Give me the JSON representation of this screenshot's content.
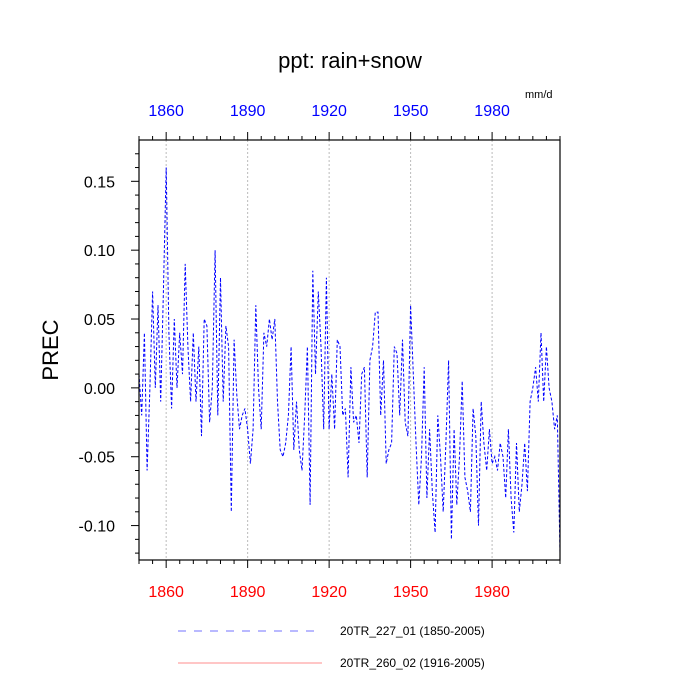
{
  "chart_data": {
    "type": "line",
    "title": "ppt: rain+snow",
    "units": "mm/d",
    "ylabel": "PREC",
    "xlabel": "",
    "xlim": [
      1850,
      2005
    ],
    "ylim": [
      -0.125,
      0.18
    ],
    "grid": "vertical-dotted",
    "x_ticks": [
      1860,
      1890,
      1920,
      1950,
      1980
    ],
    "y_ticks": [
      0.15,
      0.1,
      0.05,
      0.0,
      -0.05,
      -0.1
    ],
    "y_tick_labels": [
      "0.15",
      "0.10",
      "0.05",
      "0.00",
      "-0.05",
      "-0.10"
    ],
    "top_axis_color": "#0000ff",
    "bottom_axis_color": "#ff0000",
    "series": [
      {
        "name": "20TR_227_01 (1850-2005)",
        "color": "#0000ff",
        "style": "dashed",
        "x_start": 1850,
        "values": [
          0.01,
          -0.02,
          0.04,
          -0.06,
          0.0,
          0.07,
          0.0,
          0.06,
          -0.01,
          0.07,
          0.16,
          0.04,
          -0.015,
          0.05,
          0.0,
          0.04,
          0.01,
          0.09,
          0.03,
          -0.01,
          0.04,
          -0.01,
          0.03,
          -0.035,
          0.05,
          0.045,
          -0.025,
          0.0,
          0.1,
          -0.02,
          0.08,
          -0.01,
          0.045,
          0.03,
          -0.09,
          0.035,
          -0.005,
          -0.03,
          -0.02,
          -0.015,
          -0.03,
          -0.055,
          -0.03,
          0.06,
          0.0,
          -0.03,
          0.04,
          0.03,
          0.05,
          0.035,
          0.05,
          -0.01,
          -0.045,
          -0.05,
          -0.04,
          -0.02,
          0.03,
          -0.045,
          -0.01,
          -0.045,
          -0.06,
          -0.02,
          0.03,
          -0.085,
          0.085,
          0.01,
          0.07,
          0.03,
          -0.03,
          0.08,
          -0.03,
          0.01,
          -0.03,
          0.035,
          0.03,
          -0.02,
          -0.015,
          -0.065,
          0.015,
          -0.025,
          -0.02,
          -0.04,
          0.01,
          0.015,
          -0.065,
          0.02,
          0.03,
          0.055,
          0.055,
          -0.02,
          0.02,
          -0.055,
          -0.045,
          -0.04,
          0.03,
          0.025,
          -0.02,
          0.035,
          -0.025,
          -0.035,
          0.06,
          0.01,
          -0.04,
          -0.085,
          -0.05,
          0.015,
          -0.08,
          -0.03,
          -0.075,
          -0.105,
          -0.02,
          -0.05,
          -0.09,
          -0.04,
          0.02,
          -0.11,
          -0.03,
          -0.085,
          -0.05,
          0.005,
          -0.065,
          -0.075,
          -0.09,
          -0.015,
          -0.035,
          -0.1,
          -0.01,
          -0.04,
          -0.06,
          -0.03,
          -0.055,
          -0.05,
          -0.06,
          -0.04,
          -0.05,
          -0.08,
          -0.03,
          -0.08,
          -0.105,
          -0.04,
          -0.09,
          -0.07,
          -0.04,
          -0.075,
          -0.01,
          0.0,
          0.015,
          -0.01,
          0.04,
          -0.01,
          0.03,
          0.0,
          -0.01,
          -0.03,
          -0.02,
          -0.12
        ]
      },
      {
        "name": "20TR_260_02 (1916-2005)",
        "color": "#ff0000",
        "style": "solid",
        "values": []
      }
    ]
  }
}
